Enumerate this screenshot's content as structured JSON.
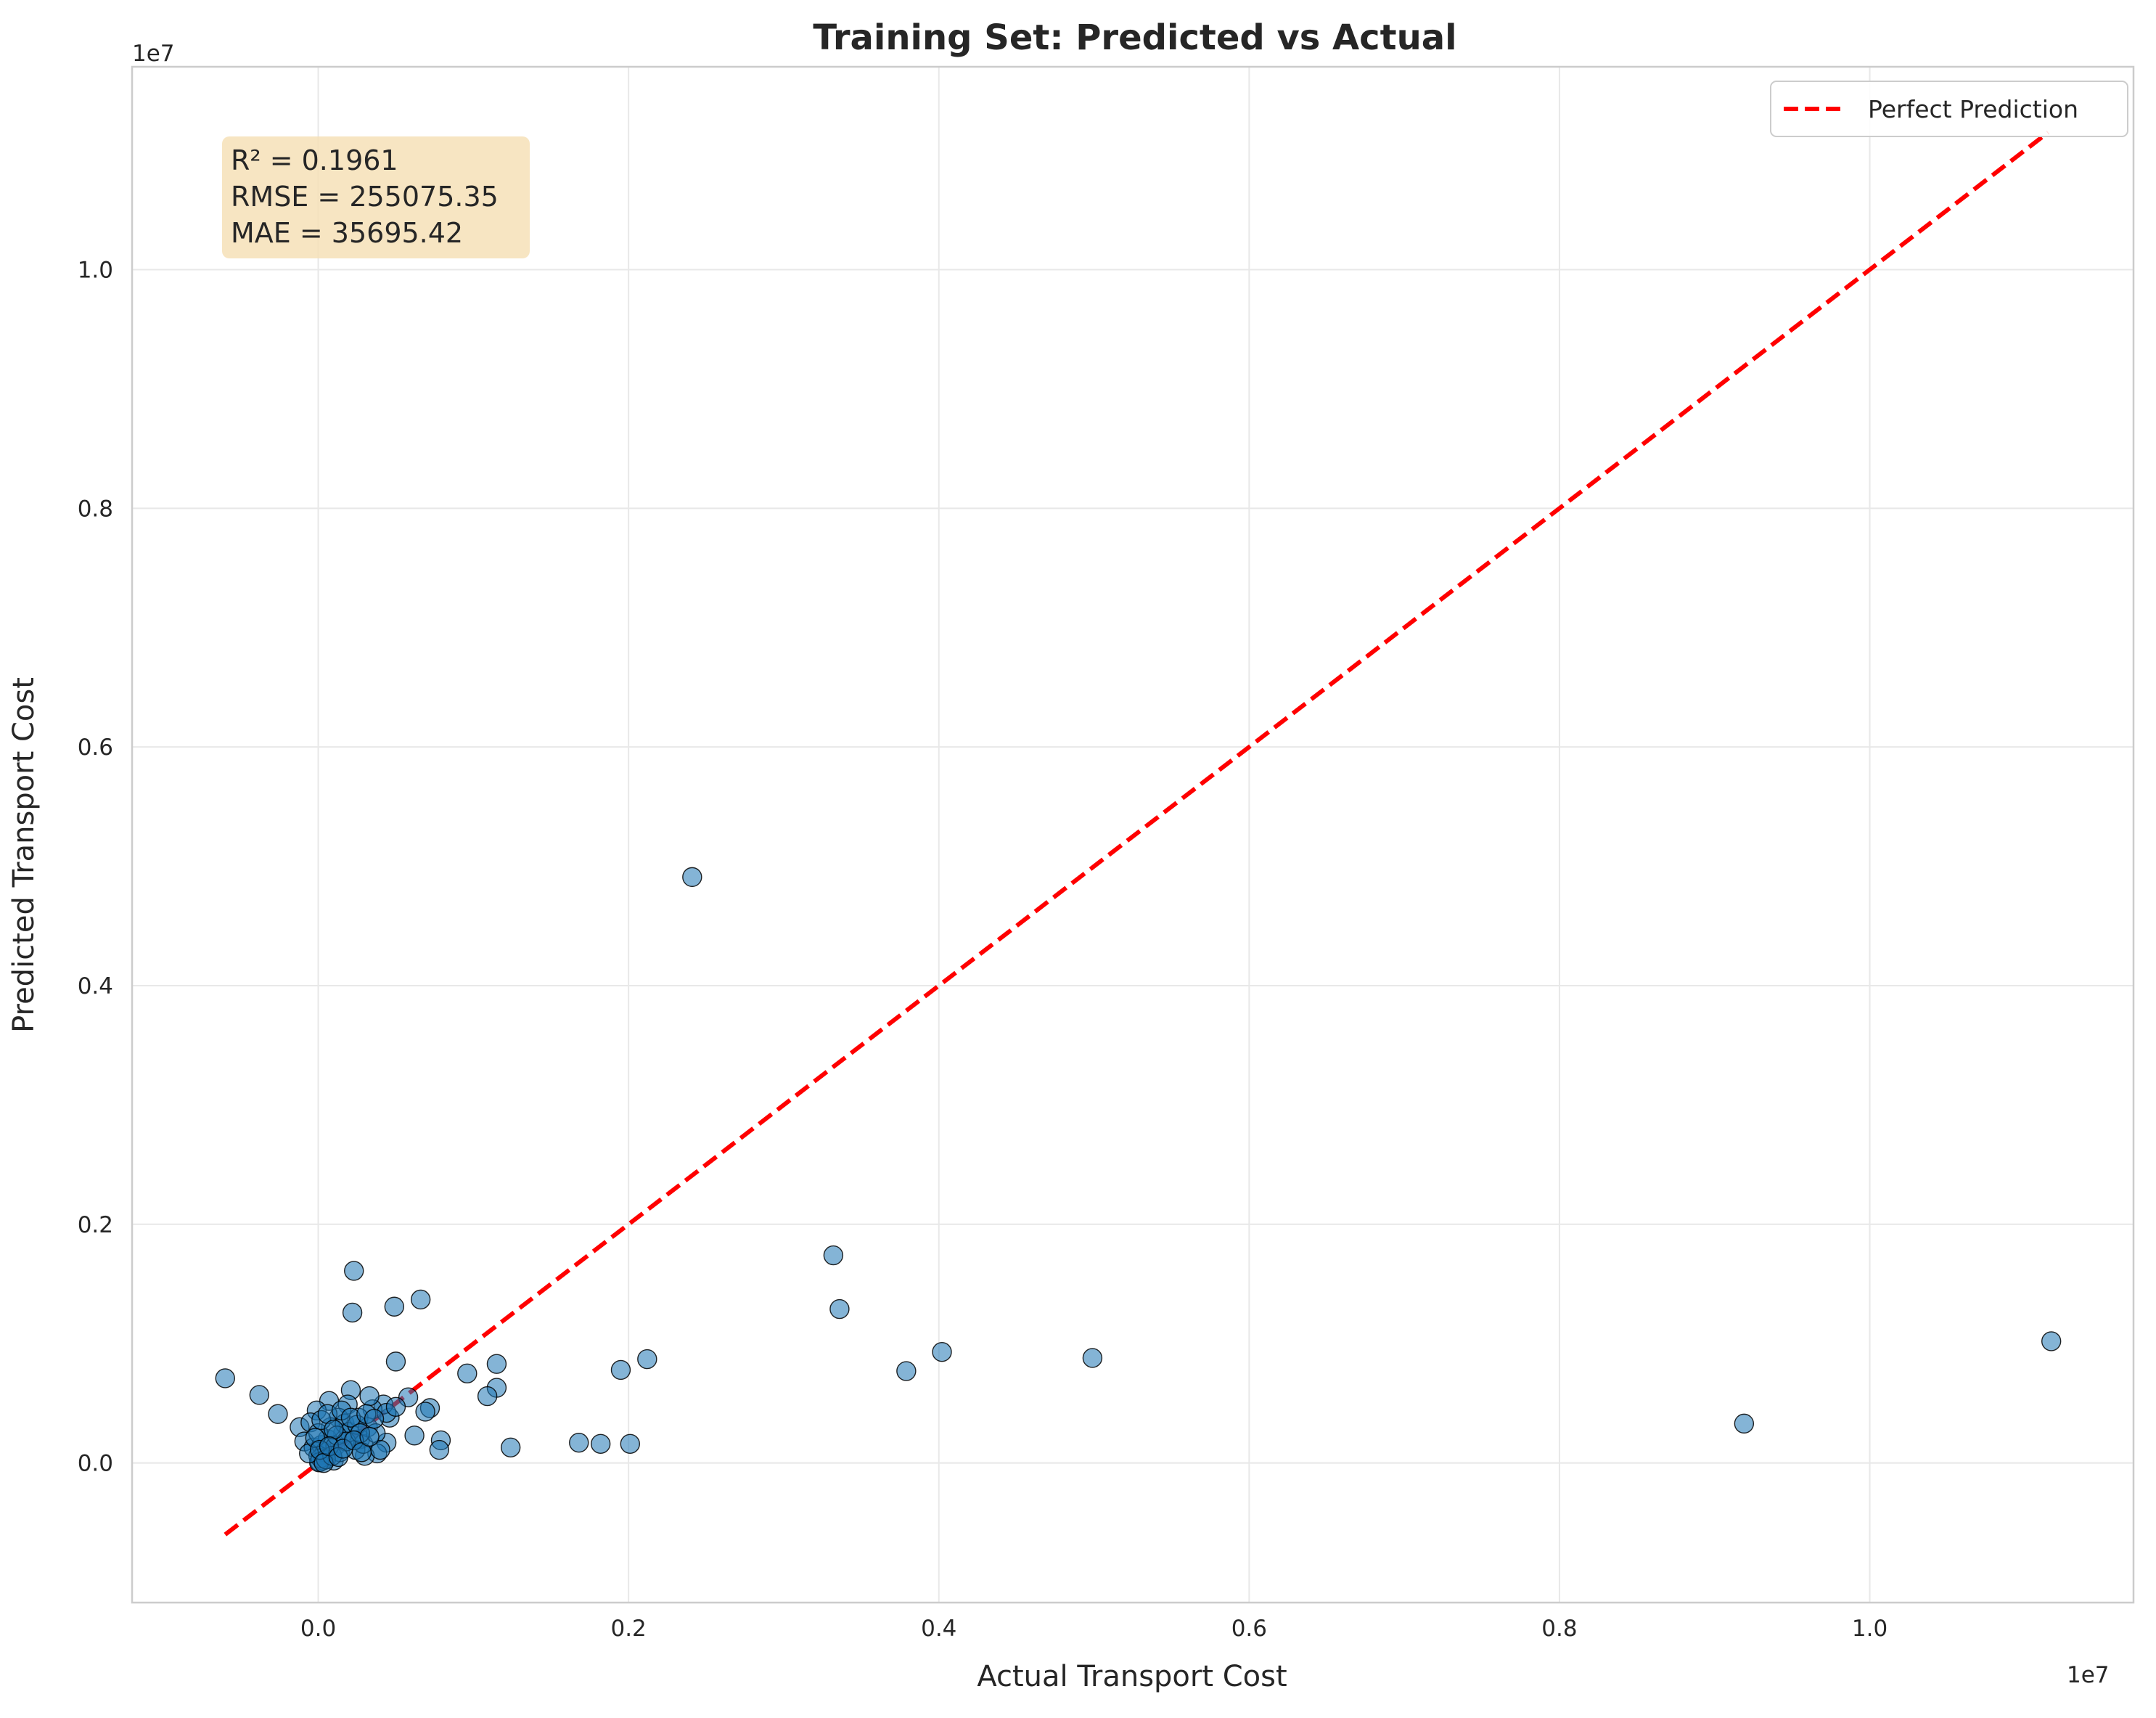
{
  "chart_data": {
    "type": "scatter",
    "title": "Training Set: Predicted vs Actual",
    "xlabel": "Actual Transport Cost",
    "ylabel": "Predicted Transport Cost",
    "x_offset_label": "1e7",
    "y_offset_label": "1e7",
    "xlim": [
      -1200000,
      11700000
    ],
    "ylim": [
      -1170000,
      11700000
    ],
    "x_ticks": [
      0.0,
      0.2,
      0.4,
      0.6,
      0.8,
      1.0
    ],
    "x_tick_labels": [
      "0.0",
      "0.2",
      "0.4",
      "0.6",
      "0.8",
      "1.0"
    ],
    "y_ticks": [
      0.0,
      0.2,
      0.4,
      0.6,
      0.8,
      1.0
    ],
    "y_tick_labels": [
      "0.0",
      "0.2",
      "0.4",
      "0.6",
      "0.8",
      "1.0"
    ],
    "grid": true,
    "legend": {
      "location": "upper right",
      "entries": [
        "Perfect Prediction"
      ]
    },
    "stats": [
      "R² = 0.1961",
      "RMSE = 255075.35",
      "MAE = 35695.42"
    ],
    "colors": {
      "points": "#1f77b4",
      "point_edge": "#000000",
      "perfect_line": "#ff0000",
      "stats_box": "#f5deb3"
    },
    "perfect_line": {
      "x": [
        -600000,
        11150000
      ],
      "y": [
        -600000,
        11150000
      ]
    },
    "series": [
      {
        "points": [
          [
            2410000,
            4910000
          ],
          [
            3320000,
            1740000
          ],
          [
            3360000,
            1290000
          ],
          [
            3790000,
            770000
          ],
          [
            4020000,
            930000
          ],
          [
            4990000,
            880000
          ],
          [
            9190000,
            330000
          ],
          [
            11170000,
            1020000
          ],
          [
            1680000,
            170000
          ],
          [
            1820000,
            160000
          ],
          [
            2010000,
            160000
          ],
          [
            1950000,
            780000
          ],
          [
            2120000,
            870000
          ],
          [
            1240000,
            130000
          ],
          [
            1150000,
            830000
          ],
          [
            1150000,
            630000
          ],
          [
            1090000,
            560000
          ],
          [
            960000,
            750000
          ],
          [
            790000,
            190000
          ],
          [
            780000,
            110000
          ],
          [
            720000,
            460000
          ],
          [
            690000,
            430000
          ],
          [
            660000,
            1370000
          ],
          [
            620000,
            230000
          ],
          [
            580000,
            550000
          ],
          [
            500000,
            850000
          ],
          [
            490000,
            1310000
          ],
          [
            460000,
            380000
          ],
          [
            440000,
            170000
          ],
          [
            420000,
            490000
          ],
          [
            380000,
            80000
          ],
          [
            350000,
            450000
          ],
          [
            330000,
            560000
          ],
          [
            300000,
            60000
          ],
          [
            270000,
            200000
          ],
          [
            230000,
            1610000
          ],
          [
            220000,
            1260000
          ],
          [
            210000,
            610000
          ],
          [
            190000,
            490000
          ],
          [
            160000,
            250000
          ],
          [
            130000,
            380000
          ],
          [
            100000,
            20000
          ],
          [
            70000,
            520000
          ],
          [
            -10000,
            440000
          ],
          [
            -600000,
            710000
          ],
          [
            -380000,
            570000
          ],
          [
            -260000,
            410000
          ],
          [
            -120000,
            300000
          ],
          [
            -90000,
            180000
          ],
          [
            -50000,
            340000
          ],
          [
            -30000,
            130000
          ],
          [
            0,
            60000
          ],
          [
            10000,
            10000
          ],
          [
            20000,
            150000
          ],
          [
            40000,
            90000
          ],
          [
            60000,
            200000
          ],
          [
            80000,
            300000
          ],
          [
            110000,
            140000
          ],
          [
            140000,
            90000
          ],
          [
            170000,
            330000
          ],
          [
            200000,
            260000
          ],
          [
            240000,
            110000
          ],
          [
            260000,
            380000
          ],
          [
            290000,
            160000
          ],
          [
            320000,
            300000
          ],
          [
            370000,
            250000
          ],
          [
            400000,
            110000
          ],
          [
            440000,
            420000
          ],
          [
            30000,
            20000
          ],
          [
            15000,
            40000
          ],
          [
            5000,
            5000
          ],
          [
            50000,
            30000
          ],
          [
            90000,
            60000
          ],
          [
            120000,
            230000
          ],
          [
            180000,
            180000
          ],
          [
            250000,
            320000
          ],
          [
            0,
            250000
          ],
          [
            20000,
            360000
          ],
          [
            60000,
            410000
          ],
          [
            100000,
            280000
          ],
          [
            150000,
            440000
          ],
          [
            210000,
            380000
          ],
          [
            270000,
            250000
          ],
          [
            310000,
            410000
          ],
          [
            -60000,
            80000
          ],
          [
            -20000,
            210000
          ],
          [
            10000,
            110000
          ],
          [
            35000,
            0
          ],
          [
            70000,
            140000
          ],
          [
            130000,
            50000
          ],
          [
            160000,
            120000
          ],
          [
            230000,
            190000
          ],
          [
            280000,
            90000
          ],
          [
            330000,
            220000
          ],
          [
            360000,
            370000
          ],
          [
            500000,
            470000
          ]
        ]
      }
    ]
  }
}
